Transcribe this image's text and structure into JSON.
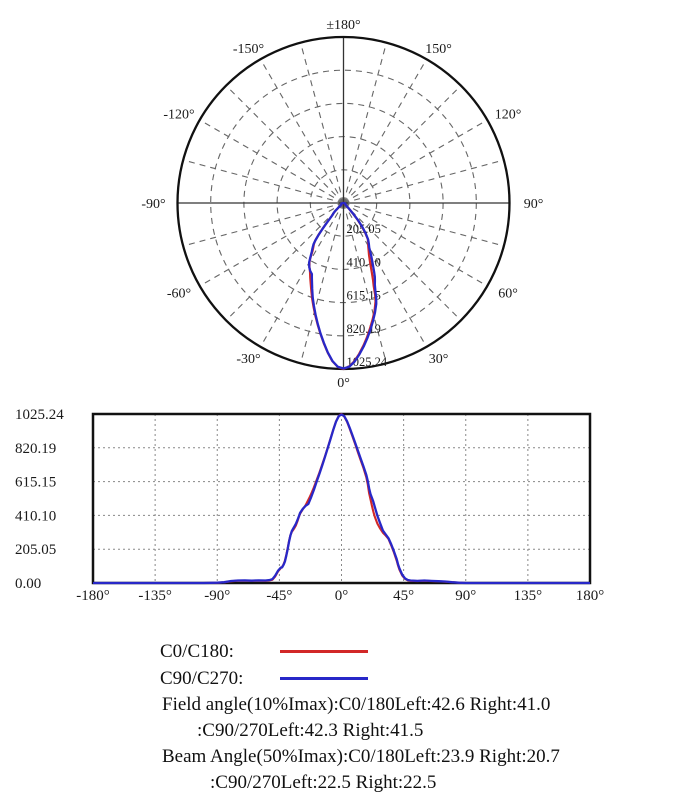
{
  "colors": {
    "c0_red": "#d22828",
    "c90_blue": "#2828c8",
    "grid_gray": "#666666",
    "frame_black": "#111111",
    "text_black": "#1a1a1a"
  },
  "intensity_series": {
    "imax": 1025.24,
    "angles_deg": [
      -180,
      -150,
      -120,
      -100,
      -90,
      -85,
      -80,
      -75,
      -70,
      -65,
      -60,
      -55,
      -52,
      -50,
      -48,
      -46,
      -44,
      -43,
      -42,
      -41,
      -40,
      -39,
      -38,
      -37,
      -36,
      -35,
      -34,
      -33,
      -32,
      -31,
      -30,
      -28,
      -26,
      -24,
      -23,
      -22,
      -20,
      -18,
      -16,
      -14,
      -12,
      -10,
      -8,
      -6,
      -4,
      -2,
      0,
      2,
      4,
      6,
      8,
      10,
      12,
      14,
      16,
      18,
      19,
      20,
      21,
      22,
      23,
      24,
      26,
      28,
      30,
      32,
      34,
      36,
      38,
      40,
      41,
      42,
      44,
      46,
      48,
      50,
      55,
      60,
      65,
      70,
      75,
      80,
      85,
      90,
      100,
      120,
      150,
      180
    ],
    "series": [
      {
        "name": "C0/C180",
        "color": "#d22828",
        "values": [
          0,
          0,
          0,
          0,
          1,
          4,
          10,
          14,
          15,
          13,
          15,
          13,
          16,
          20,
          40,
          70,
          90,
          98,
          112,
          135,
          170,
          210,
          255,
          290,
          310,
          322,
          335,
          350,
          372,
          398,
          420,
          448,
          472,
          505,
          522,
          540,
          580,
          625,
          670,
          718,
          768,
          820,
          875,
          930,
          980,
          1013,
          1025,
          1010,
          978,
          935,
          888,
          840,
          790,
          742,
          695,
          640,
          600,
          545,
          508,
          470,
          435,
          405,
          360,
          330,
          305,
          288,
          268,
          228,
          185,
          135,
          105,
          80,
          45,
          25,
          16,
          13,
          12,
          14,
          12,
          10,
          8,
          5,
          2,
          0,
          0,
          0,
          0,
          0
        ]
      },
      {
        "name": "C90/C270",
        "color": "#2828c8",
        "values": [
          0,
          0,
          0,
          0,
          2,
          5,
          12,
          15,
          16,
          14,
          16,
          15,
          18,
          24,
          45,
          74,
          93,
          95,
          110,
          130,
          165,
          205,
          250,
          288,
          315,
          330,
          345,
          360,
          380,
          402,
          425,
          450,
          468,
          480,
          500,
          520,
          565,
          615,
          662,
          712,
          764,
          818,
          872,
          928,
          978,
          1012,
          1022,
          1012,
          982,
          940,
          895,
          848,
          800,
          752,
          705,
          655,
          620,
          575,
          540,
          518,
          495,
          465,
          408,
          362,
          318,
          295,
          272,
          235,
          192,
          145,
          112,
          88,
          50,
          28,
          18,
          15,
          13,
          15,
          13,
          11,
          9,
          5,
          2,
          0,
          0,
          0,
          0,
          0
        ]
      }
    ]
  },
  "chart_data": [
    {
      "type": "polar-line",
      "title": "",
      "zero_position": "bottom",
      "angle_grid_step_deg": 15,
      "angle_labels": [
        {
          "deg": 0,
          "label": "0°"
        },
        {
          "deg": 30,
          "label": "30°"
        },
        {
          "deg": 60,
          "label": "60°"
        },
        {
          "deg": 90,
          "label": "90°"
        },
        {
          "deg": 120,
          "label": "120°"
        },
        {
          "deg": 150,
          "label": "150°"
        },
        {
          "deg": 180,
          "label": "±180°"
        },
        {
          "deg": -150,
          "label": "-150°"
        },
        {
          "deg": -120,
          "label": "-120°"
        },
        {
          "deg": -90,
          "label": "-90°"
        },
        {
          "deg": -60,
          "label": "-60°"
        },
        {
          "deg": -30,
          "label": "-30°"
        }
      ],
      "radial_tick_labels": [
        "205.05",
        "410.10",
        "615.15",
        "820.19",
        "1025.24"
      ],
      "rmax": 1025.24,
      "grid": "dashed rings and spokes, solid outer circle and main axes",
      "series_source": "intensity_series"
    },
    {
      "type": "line",
      "title": "",
      "xlabel": "",
      "ylabel": "",
      "xlim": [
        -180,
        180
      ],
      "ylim": [
        0,
        1025.24
      ],
      "x_tick_values": [
        -180,
        -135,
        -90,
        -45,
        0,
        45,
        90,
        135,
        180
      ],
      "x_tick_labels": [
        "-180°",
        "-135°",
        "-90°",
        "-45°",
        "0°",
        "45°",
        "90°",
        "135°",
        "180°"
      ],
      "y_tick_values": [
        0,
        205.05,
        410.1,
        615.15,
        820.19,
        1025.24
      ],
      "y_tick_labels": [
        "0.00",
        "205.05",
        "410.10",
        "615.15",
        "820.19",
        "1025.24"
      ],
      "grid": "dotted gray inner gridlines, solid black frame",
      "legend_position": "below",
      "series_source": "intensity_series"
    }
  ],
  "legend": {
    "entries": [
      {
        "label": "C0/C180:",
        "color": "#d22828"
      },
      {
        "label": "C90/C270:",
        "color": "#2828c8"
      }
    ]
  },
  "annotations": {
    "field_angle_line1": "Field angle(10%Imax):C0/180Left:42.6 Right:41.0",
    "field_angle_line2": ":C90/270Left:42.3 Right:41.5",
    "beam_angle_line1": "Beam Angle(50%Imax):C0/180Left:23.9 Right:20.7",
    "beam_angle_line2": ":C90/270Left:22.5 Right:22.5"
  }
}
